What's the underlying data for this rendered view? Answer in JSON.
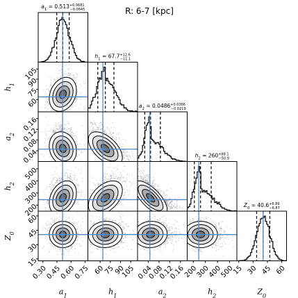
{
  "title": "R: 6-7 [kpc]",
  "chart_data": {
    "type": "corner",
    "title": "R: 6-7 [kpc]",
    "parameters": [
      {
        "name": "a1",
        "label": "a",
        "sub": "1",
        "median": "0.513",
        "err_plus": "+0.0681",
        "err_minus": "−0.0645",
        "q": [
          0.448,
          0.513,
          0.581
        ],
        "range": [
          0.25,
          0.78
        ],
        "ticks": [
          0.3,
          0.45,
          0.6,
          0.75
        ],
        "tick_labels": [
          "0.30",
          "0.45",
          "0.60",
          "0.75"
        ],
        "hist_sigma": [
          0.07,
          0.075
        ],
        "skew": 0
      },
      {
        "name": "h1",
        "label": "h",
        "sub": "1",
        "median": "67.7",
        "err_plus": "+12.6",
        "err_minus": "−11.1",
        "q": [
          56.6,
          67.7,
          80.3
        ],
        "range": [
          42,
          115
        ],
        "ticks": [
          60,
          75,
          90,
          105
        ],
        "tick_labels": [
          "60",
          "75",
          "90",
          "105"
        ],
        "hist_sigma": [
          11,
          14
        ],
        "skew": 0.3
      },
      {
        "name": "a2",
        "label": "a",
        "sub": "2",
        "median": "0.0486",
        "err_plus": "+0.0366",
        "err_minus": "−0.0219",
        "q": [
          0.0267,
          0.0486,
          0.0852
        ],
        "range": [
          0.0,
          0.185
        ],
        "ticks": [
          0.04,
          0.08,
          0.12,
          0.16
        ],
        "tick_labels": [
          "0.04",
          "0.08",
          "0.12",
          "0.16"
        ],
        "hist_sigma": [
          0.02,
          0.042
        ],
        "skew": 0.8
      },
      {
        "name": "h2",
        "label": "h",
        "sub": "2",
        "median": "260",
        "err_plus": "+88.1",
        "err_minus": "−50.9",
        "q": [
          209,
          260,
          348
        ],
        "range": [
          150,
          560
        ],
        "ticks": [
          200,
          300,
          400,
          500
        ],
        "tick_labels": [
          "200",
          "300",
          "400",
          "500"
        ],
        "hist_sigma": [
          45,
          95
        ],
        "skew": 0.6
      },
      {
        "name": "Z0",
        "label": "Z",
        "sub": "0",
        "median": "40.6",
        "err_plus": "+6.89",
        "err_minus": "−6.87",
        "q": [
          33.7,
          40.6,
          47.5
        ],
        "range": [
          13,
          65
        ],
        "ticks": [
          15,
          30,
          45,
          60
        ],
        "tick_labels": [
          "15",
          "30",
          "45",
          "60"
        ],
        "hist_sigma": [
          6.9,
          6.9
        ],
        "skew": 0
      }
    ],
    "truths": [
      0.51,
      64,
      0.046,
      245,
      40.5
    ],
    "correlations": {
      "1,0": 0.25,
      "2,0": -0.15,
      "2,1": -0.55,
      "3,0": 0.3,
      "3,1": 0.45,
      "3,2": -0.7,
      "4,0": 0.0,
      "4,1": 0.05,
      "4,2": 0.05,
      "4,3": 0.0
    },
    "colors": {
      "truth": "#4f8ac8",
      "contour": "#000000",
      "fill": "#8a8a8a",
      "hist": "#000000",
      "quantile": "#000000"
    }
  }
}
